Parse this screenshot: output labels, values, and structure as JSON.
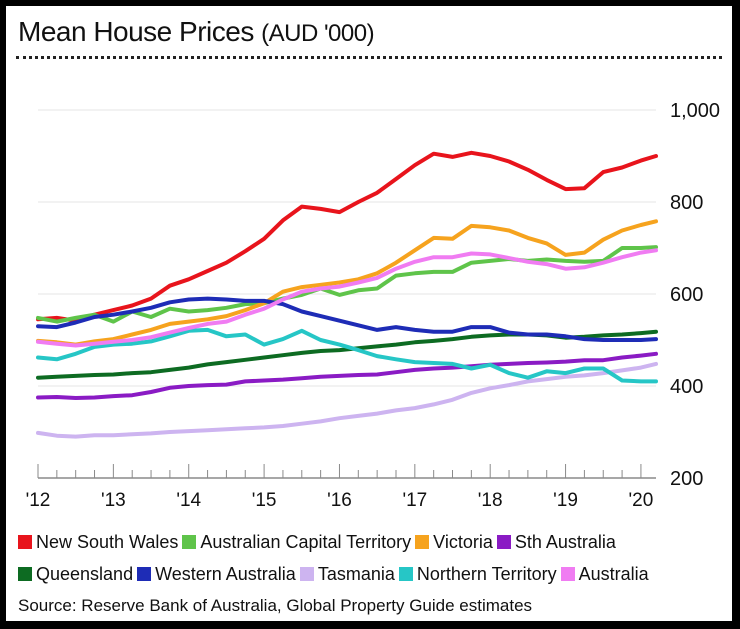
{
  "header": {
    "title": "Mean House Prices",
    "unit": "(AUD '000)"
  },
  "source": "Source: Reserve Bank of Australia, Global Property Guide estimates",
  "colors": {
    "nsw": "#e8141c",
    "act": "#5fc44a",
    "vic": "#f6a31e",
    "sa": "#8a1bc4",
    "qld": "#0d6b22",
    "wa": "#1e2cb6",
    "tas": "#cdb4f0",
    "nt": "#26c6c6",
    "aus": "#f07cf2"
  },
  "chart_data": {
    "type": "line",
    "title": "Mean House Prices (AUD '000)",
    "xlabel": "",
    "ylabel": "",
    "x_tick_labels": [
      "'12",
      "'13",
      "'14",
      "'15",
      "'16",
      "'17",
      "'18",
      "'19",
      "'20"
    ],
    "x_tick_values": [
      2012,
      2013,
      2014,
      2015,
      2016,
      2017,
      2018,
      2019,
      2020
    ],
    "y_tick_labels": [
      "200",
      "400",
      "600",
      "800",
      "1,000"
    ],
    "y_tick_values": [
      200,
      400,
      600,
      800,
      1000
    ],
    "xlim": [
      2012,
      2020.2
    ],
    "ylim": [
      200,
      1000
    ],
    "grid": "horizontal",
    "legend_position": "bottom",
    "x": [
      2012.0,
      2012.25,
      2012.5,
      2012.75,
      2013.0,
      2013.25,
      2013.5,
      2013.75,
      2014.0,
      2014.25,
      2014.5,
      2014.75,
      2015.0,
      2015.25,
      2015.5,
      2015.75,
      2016.0,
      2016.25,
      2016.5,
      2016.75,
      2017.0,
      2017.25,
      2017.5,
      2017.75,
      2018.0,
      2018.25,
      2018.5,
      2018.75,
      2019.0,
      2019.25,
      2019.5,
      2019.75,
      2020.0,
      2020.2
    ],
    "series": [
      {
        "key": "nsw",
        "name": "New South Wales",
        "values": [
          545,
          548,
          542,
          555,
          565,
          575,
          590,
          618,
          632,
          650,
          668,
          693,
          720,
          760,
          790,
          785,
          778,
          800,
          820,
          850,
          880,
          905,
          898,
          907,
          900,
          888,
          870,
          848,
          828,
          830,
          865,
          875,
          890,
          900
        ]
      },
      {
        "key": "act",
        "name": "Australian Capital Territory",
        "values": [
          548,
          540,
          548,
          555,
          540,
          562,
          550,
          568,
          562,
          565,
          570,
          578,
          580,
          590,
          598,
          612,
          598,
          608,
          612,
          640,
          645,
          648,
          648,
          668,
          672,
          676,
          672,
          675,
          672,
          670,
          672,
          700,
          700,
          702
        ]
      },
      {
        "key": "vic",
        "name": "Victoria",
        "values": [
          498,
          495,
          490,
          497,
          502,
          512,
          522,
          535,
          540,
          545,
          552,
          565,
          580,
          605,
          615,
          620,
          625,
          632,
          645,
          668,
          695,
          722,
          720,
          748,
          745,
          738,
          722,
          710,
          685,
          690,
          718,
          738,
          750,
          758
        ]
      },
      {
        "key": "sa",
        "name": "Sth Australia",
        "values": [
          375,
          376,
          374,
          375,
          378,
          380,
          387,
          396,
          400,
          402,
          403,
          410,
          412,
          414,
          417,
          420,
          422,
          424,
          425,
          430,
          435,
          438,
          440,
          443,
          446,
          448,
          450,
          451,
          453,
          456,
          456,
          462,
          466,
          470
        ]
      },
      {
        "key": "qld",
        "name": "Queensland",
        "values": [
          418,
          420,
          422,
          424,
          425,
          428,
          430,
          435,
          440,
          447,
          452,
          457,
          462,
          467,
          472,
          476,
          478,
          482,
          486,
          490,
          495,
          498,
          502,
          507,
          510,
          512,
          512,
          510,
          505,
          507,
          510,
          512,
          515,
          518
        ]
      },
      {
        "key": "wa",
        "name": "Western Australia",
        "values": [
          530,
          528,
          538,
          550,
          555,
          562,
          570,
          582,
          588,
          590,
          588,
          585,
          585,
          578,
          562,
          552,
          542,
          532,
          522,
          528,
          522,
          518,
          518,
          528,
          528,
          516,
          512,
          512,
          508,
          502,
          500,
          500,
          500,
          502
        ]
      },
      {
        "key": "tas",
        "name": "Tasmania",
        "values": [
          298,
          292,
          290,
          293,
          293,
          295,
          297,
          300,
          302,
          304,
          306,
          308,
          310,
          313,
          318,
          323,
          330,
          335,
          340,
          347,
          352,
          360,
          370,
          385,
          395,
          402,
          410,
          415,
          420,
          423,
          428,
          434,
          440,
          448
        ]
      },
      {
        "key": "nt",
        "name": "Northern Territory",
        "values": [
          462,
          458,
          470,
          485,
          490,
          492,
          497,
          508,
          520,
          522,
          508,
          512,
          490,
          502,
          520,
          500,
          490,
          478,
          465,
          458,
          452,
          450,
          448,
          438,
          446,
          428,
          418,
          432,
          428,
          438,
          438,
          412,
          410,
          410
        ]
      },
      {
        "key": "aus",
        "name": "Australia",
        "values": [
          496,
          492,
          488,
          492,
          496,
          500,
          506,
          516,
          526,
          535,
          540,
          555,
          568,
          588,
          605,
          612,
          616,
          625,
          635,
          655,
          670,
          680,
          680,
          688,
          686,
          678,
          670,
          665,
          655,
          658,
          668,
          680,
          690,
          695
        ]
      }
    ]
  },
  "legend": {
    "row1": [
      "New South Wales",
      "Australian Capital Territory",
      "Victoria",
      "Sth Australia"
    ],
    "row2": [
      "Queensland",
      "Western Australia",
      "Tasmania",
      "Northern Territory",
      "Australia"
    ]
  }
}
